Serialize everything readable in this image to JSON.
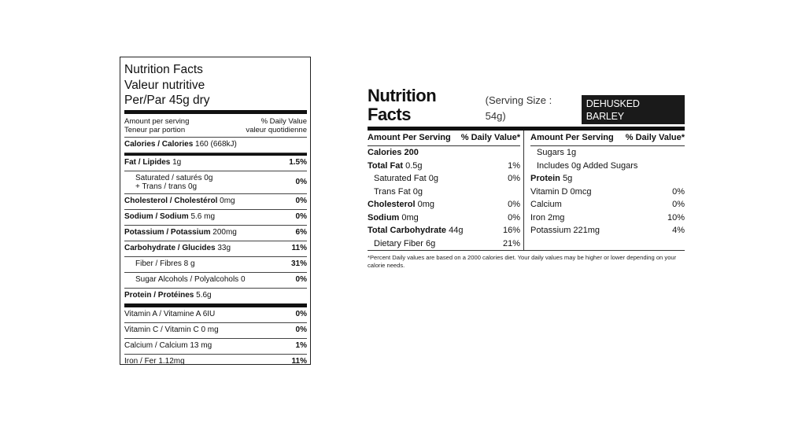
{
  "left_label": {
    "title_lines": [
      "Nutrition Facts",
      "Valeur nutritive",
      "Per/Par 45g dry"
    ],
    "amount_left": [
      "Amount per serving",
      "Teneur par portion"
    ],
    "amount_right": [
      "% Daily Value",
      "valeur quotidienne"
    ],
    "calories": {
      "name": "Calories / Calories",
      "value": "160 (668kJ)"
    },
    "rows": [
      {
        "name": "Fat / Lipides",
        "value": "1g",
        "pct": "1.5%"
      },
      {
        "name": "Saturated / saturés 0g",
        "name2": "+ Trans / trans 0g",
        "pct": "0%"
      },
      {
        "name": "Cholesterol / Cholestérol",
        "value": "0mg",
        "pct": "0%"
      },
      {
        "name": "Sodium / Sodium",
        "value": "5.6 mg",
        "pct": "0%"
      },
      {
        "name": "Potassium / Potassium",
        "value": "200mg",
        "pct": "6%"
      },
      {
        "name": "Carbohydrate / Glucides",
        "value": "33g",
        "pct": "11%"
      },
      {
        "name": "Fiber / Fibres 8 g",
        "pct": "31%"
      },
      {
        "name": "Sugar Alcohols / Polyalcohols 0",
        "pct": "0%"
      },
      {
        "name": "Protein / Protéines",
        "value": "5.6g",
        "pct": ""
      }
    ],
    "vitamins": [
      {
        "name": "Vitamin A / Vitamine A 6IU",
        "pct": "0%"
      },
      {
        "name": "Vitamin C / Vitamin C 0 mg",
        "pct": "0%"
      },
      {
        "name": "Calcium / Calcium 13 mg",
        "pct": "1%"
      },
      {
        "name": "Iron / Fer  1.12mg",
        "pct": "11%"
      }
    ]
  },
  "right_label": {
    "title": "Nutrition Facts",
    "serving": "(Serving Size : 54g)",
    "badge": "DEHUSKED BARLEY",
    "left_head": {
      "a": "Amount Per Serving",
      "b": "% Daily Value*"
    },
    "right_head": {
      "a": "Amount Per Serving",
      "b": "% Daily Value*"
    },
    "left_rows": [
      {
        "bold": "Calories 200",
        "rest": "",
        "pct": ""
      },
      {
        "bold": "Total Fat",
        "rest": " 0.5g",
        "pct": "1%"
      },
      {
        "bold": "",
        "rest": "Saturated Fat 0g",
        "pct": "0%",
        "indent": true
      },
      {
        "bold": "",
        "rest": "Trans Fat  0g",
        "pct": "",
        "indent": true
      },
      {
        "bold": "Cholesterol",
        "rest": " 0mg",
        "pct": "0%"
      },
      {
        "bold": "Sodium",
        "rest": " 0mg",
        "pct": "0%"
      },
      {
        "bold": "Total Carbohydrate",
        "rest": " 44g",
        "pct": "16%"
      },
      {
        "bold": "",
        "rest": "Dietary Fiber 6g",
        "pct": "21%",
        "indent": true
      }
    ],
    "right_rows": [
      {
        "bold": "",
        "rest": "Sugars 1g",
        "pct": "",
        "indent": true
      },
      {
        "bold": "",
        "rest": "Includes 0g Added Sugars",
        "pct": "",
        "indent": true
      },
      {
        "bold": "Protein",
        "rest": " 5g",
        "pct": ""
      },
      {
        "bold": "",
        "rest": "Vitamin D 0mcg",
        "pct": "0%"
      },
      {
        "bold": "",
        "rest": "Calcium",
        "pct": "0%"
      },
      {
        "bold": "",
        "rest": "Iron 2mg",
        "pct": "10%"
      },
      {
        "bold": "",
        "rest": "Potassium 221mg",
        "pct": "4%"
      }
    ],
    "footnote": "*Percent Daily values are based on a 2000 calories diet. Your daily values may be higher or lower depending on your calorie needs."
  }
}
